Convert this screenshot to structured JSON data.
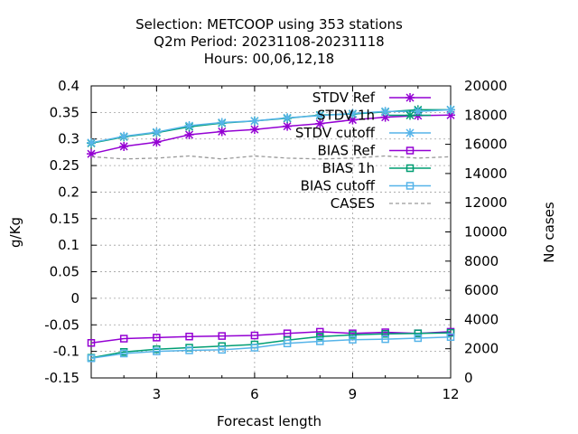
{
  "title": {
    "line1": "Selection: METCOOP using   353 stations",
    "line2": "Q2m   Period: 20231108-20231118",
    "line3": "Hours:  00,06,12,18"
  },
  "chart_data": {
    "type": "line",
    "xlabel": "Forecast length",
    "ylabel": "g/Kg",
    "y2label": "No cases",
    "xlim": [
      1,
      12
    ],
    "ylim": [
      -0.15,
      0.4
    ],
    "y2lim": [
      0,
      20000
    ],
    "x_ticks": [
      3,
      6,
      9,
      12
    ],
    "y_ticks": [
      -0.15,
      -0.1,
      -0.05,
      0,
      0.05,
      0.1,
      0.15,
      0.2,
      0.25,
      0.3,
      0.35,
      0.4
    ],
    "y_tick_labels": [
      "-0.15",
      "-0.1",
      "-0.05",
      "0",
      "0.05",
      "0.1",
      "0.15",
      "0.2",
      "0.25",
      "0.3",
      "0.35",
      "0.4"
    ],
    "y2_ticks": [
      0,
      2000,
      4000,
      6000,
      8000,
      10000,
      12000,
      14000,
      16000,
      18000,
      20000
    ],
    "grid": true,
    "legend_position": "top-right",
    "x": [
      1,
      2,
      3,
      4,
      5,
      6,
      7,
      8,
      9,
      10,
      11,
      12
    ],
    "series": [
      {
        "name": "STDV Ref",
        "color": "#9400d3",
        "marker": "star",
        "dashed": false,
        "axis": "y",
        "values": [
          0.272,
          0.286,
          0.294,
          0.308,
          0.314,
          0.318,
          0.324,
          0.329,
          0.336,
          0.341,
          0.344,
          0.345
        ]
      },
      {
        "name": "STDV 1h",
        "color": "#009e73",
        "marker": "star",
        "dashed": false,
        "axis": "y",
        "values": [
          0.292,
          0.304,
          0.312,
          0.323,
          0.33,
          0.334,
          0.339,
          0.345,
          0.347,
          0.351,
          0.355,
          0.355
        ]
      },
      {
        "name": "STDV cutoff",
        "color": "#56b4e9",
        "marker": "star",
        "dashed": false,
        "axis": "y",
        "values": [
          0.293,
          0.305,
          0.313,
          0.325,
          0.331,
          0.334,
          0.34,
          0.344,
          0.348,
          0.352,
          0.352,
          0.355
        ]
      },
      {
        "name": "BIAS Ref",
        "color": "#9400d3",
        "marker": "square",
        "dashed": false,
        "axis": "y",
        "values": [
          -0.084,
          -0.076,
          -0.074,
          -0.072,
          -0.071,
          -0.07,
          -0.066,
          -0.063,
          -0.066,
          -0.064,
          -0.066,
          -0.063
        ]
      },
      {
        "name": "BIAS 1h",
        "color": "#009e73",
        "marker": "square",
        "dashed": false,
        "axis": "y",
        "values": [
          -0.112,
          -0.101,
          -0.096,
          -0.093,
          -0.09,
          -0.087,
          -0.079,
          -0.072,
          -0.069,
          -0.067,
          -0.066,
          -0.065
        ]
      },
      {
        "name": "BIAS cutoff",
        "color": "#56b4e9",
        "marker": "square",
        "dashed": false,
        "axis": "y",
        "values": [
          -0.113,
          -0.104,
          -0.1,
          -0.098,
          -0.097,
          -0.093,
          -0.085,
          -0.081,
          -0.078,
          -0.077,
          -0.075,
          -0.073
        ]
      },
      {
        "name": "CASES",
        "color": "#999999",
        "marker": "none",
        "dashed": true,
        "axis": "y2",
        "values": [
          15150,
          15000,
          15050,
          15200,
          15000,
          15200,
          15050,
          15000,
          15050,
          15200,
          15050,
          15150
        ]
      }
    ]
  }
}
